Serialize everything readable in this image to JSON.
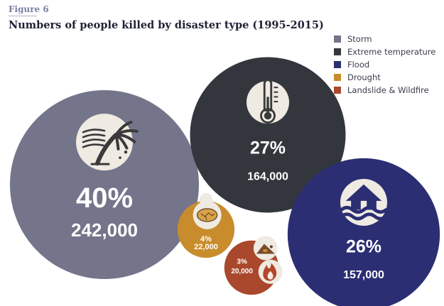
{
  "figure_label": "Figure 6",
  "chart_data": {
    "type": "bubble",
    "title": "Numbers of people killed by disaster type (1995-2015)",
    "legend_position": "top-right",
    "categories": [
      "Storm",
      "Extreme temperature",
      "Flood",
      "Drought",
      "Landslide & Wildfire"
    ],
    "series": [
      {
        "name": "Storm",
        "percent": "40%",
        "deaths": "242,000",
        "value": 242000,
        "color": "#74758a",
        "icon": "storm-tree-icon"
      },
      {
        "name": "Extreme temperature",
        "percent": "27%",
        "deaths": "164,000",
        "value": 164000,
        "color": "#34363e",
        "icon": "thermometer-icon"
      },
      {
        "name": "Flood",
        "percent": "26%",
        "deaths": "157,000",
        "value": 157000,
        "color": "#2b2e73",
        "icon": "flooded-house-icon"
      },
      {
        "name": "Drought",
        "percent": "4%",
        "deaths": "22,000",
        "value": 22000,
        "color": "#c98c2c",
        "icon": "dried-earth-icon"
      },
      {
        "name": "Landslide & Wildfire",
        "percent": "3%",
        "deaths": "20,000",
        "value": 20000,
        "color": "#a9482c",
        "icon": "landslide-icon"
      }
    ],
    "extra_icons": {
      "Landslide & Wildfire": "wildfire-icon"
    }
  },
  "colors": {
    "icon_disc": "#efeae2",
    "icon_stroke": "#3a3a3a",
    "text_on_bubble": "#ffffff"
  }
}
